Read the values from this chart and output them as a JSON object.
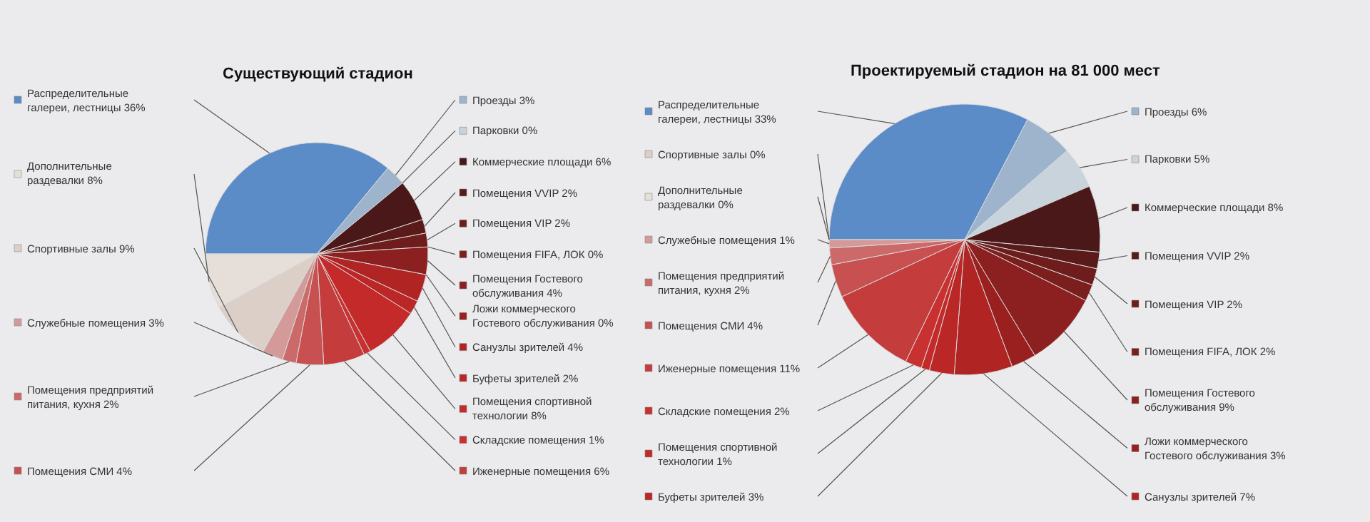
{
  "chart_data": [
    {
      "type": "pie",
      "title": "Существующий стадион",
      "legend": "right",
      "categories": [
        "Распределительные галереи, лестницы",
        "Проезды",
        "Парковки",
        "Коммерческие площади",
        "Помещения VVIP",
        "Помещения VIP",
        "Помещения FIFA, ЛОК",
        "Помещения Гостевого обслуживания",
        "Ложи коммерческого Гостевого обслуживания",
        "Санузлы зрителей",
        "Буфеты зрителей",
        "Помещения спортивной технологии",
        "Складские помещения",
        "Иженерные помещения",
        "Помещения СМИ",
        "Помещения предприятий питания, кухня",
        "Служебные помещения",
        "Спортивные залы",
        "Дополнительные раздевалки"
      ],
      "values": [
        36,
        3,
        0,
        6,
        2,
        2,
        0,
        4,
        0,
        4,
        2,
        8,
        1,
        6,
        4,
        2,
        3,
        9,
        8
      ],
      "value_labels": [
        "36%",
        "3%",
        "0%",
        "6%",
        "2%",
        "2%",
        "0%",
        "4%",
        "0%",
        "4%",
        "2%",
        "8%",
        "1%",
        "6%",
        "4%",
        "2%",
        "3%",
        "9%",
        "8%"
      ],
      "colors": [
        "#5b8cc8",
        "#9db4cc",
        "#c8d3dc",
        "#4a1818",
        "#5a1a1a",
        "#6e1c1c",
        "#7a1e1e",
        "#8c1f1f",
        "#9a2020",
        "#b02424",
        "#bb2626",
        "#c42a2a",
        "#c93030",
        "#c43c3c",
        "#c85050",
        "#cc6a6a",
        "#d49a9a",
        "#dccfc8",
        "#e6ded8"
      ]
    },
    {
      "type": "pie",
      "title": "Проектируемый стадион на 81 000 мест",
      "legend": "right",
      "categories": [
        "Распределительные галереи, лестницы",
        "Проезды",
        "Парковки",
        "Коммерческие площади",
        "Помещения VVIP",
        "Помещения VIP",
        "Помещения FIFA, ЛОК",
        "Помещения Гостевого обслуживания",
        "Ложи коммерческого Гостевого обслуживания",
        "Санузлы зрителей",
        "Буфеты зрителей",
        "Помещения спортивной технологии",
        "Складские помещения",
        "Иженерные помещения",
        "Помещения СМИ",
        "Помещения предприятий питания, кухня",
        "Служебные помещения",
        "Спортивные залы",
        "Дополнительные раздевалки"
      ],
      "values": [
        33,
        6,
        5,
        8,
        2,
        2,
        2,
        9,
        3,
        7,
        3,
        1,
        2,
        11,
        4,
        2,
        1,
        0,
        0
      ],
      "value_labels": [
        "33%",
        "6%",
        "5%",
        "8%",
        "2%",
        "2%",
        "2%",
        "9%",
        "3%",
        "7%",
        "3%",
        "1%",
        "2%",
        "11%",
        "4%",
        "2%",
        "1%",
        "0%",
        "0%"
      ],
      "colors": [
        "#5b8cc8",
        "#9db4cc",
        "#c8d3dc",
        "#4a1818",
        "#5a1a1a",
        "#6e1c1c",
        "#7a1e1e",
        "#8c1f1f",
        "#9a2020",
        "#b02424",
        "#bb2626",
        "#c42a2a",
        "#c93030",
        "#c43c3c",
        "#c85050",
        "#cc6a6a",
        "#d49a9a",
        "#dccfc8",
        "#e6ded8"
      ]
    }
  ]
}
